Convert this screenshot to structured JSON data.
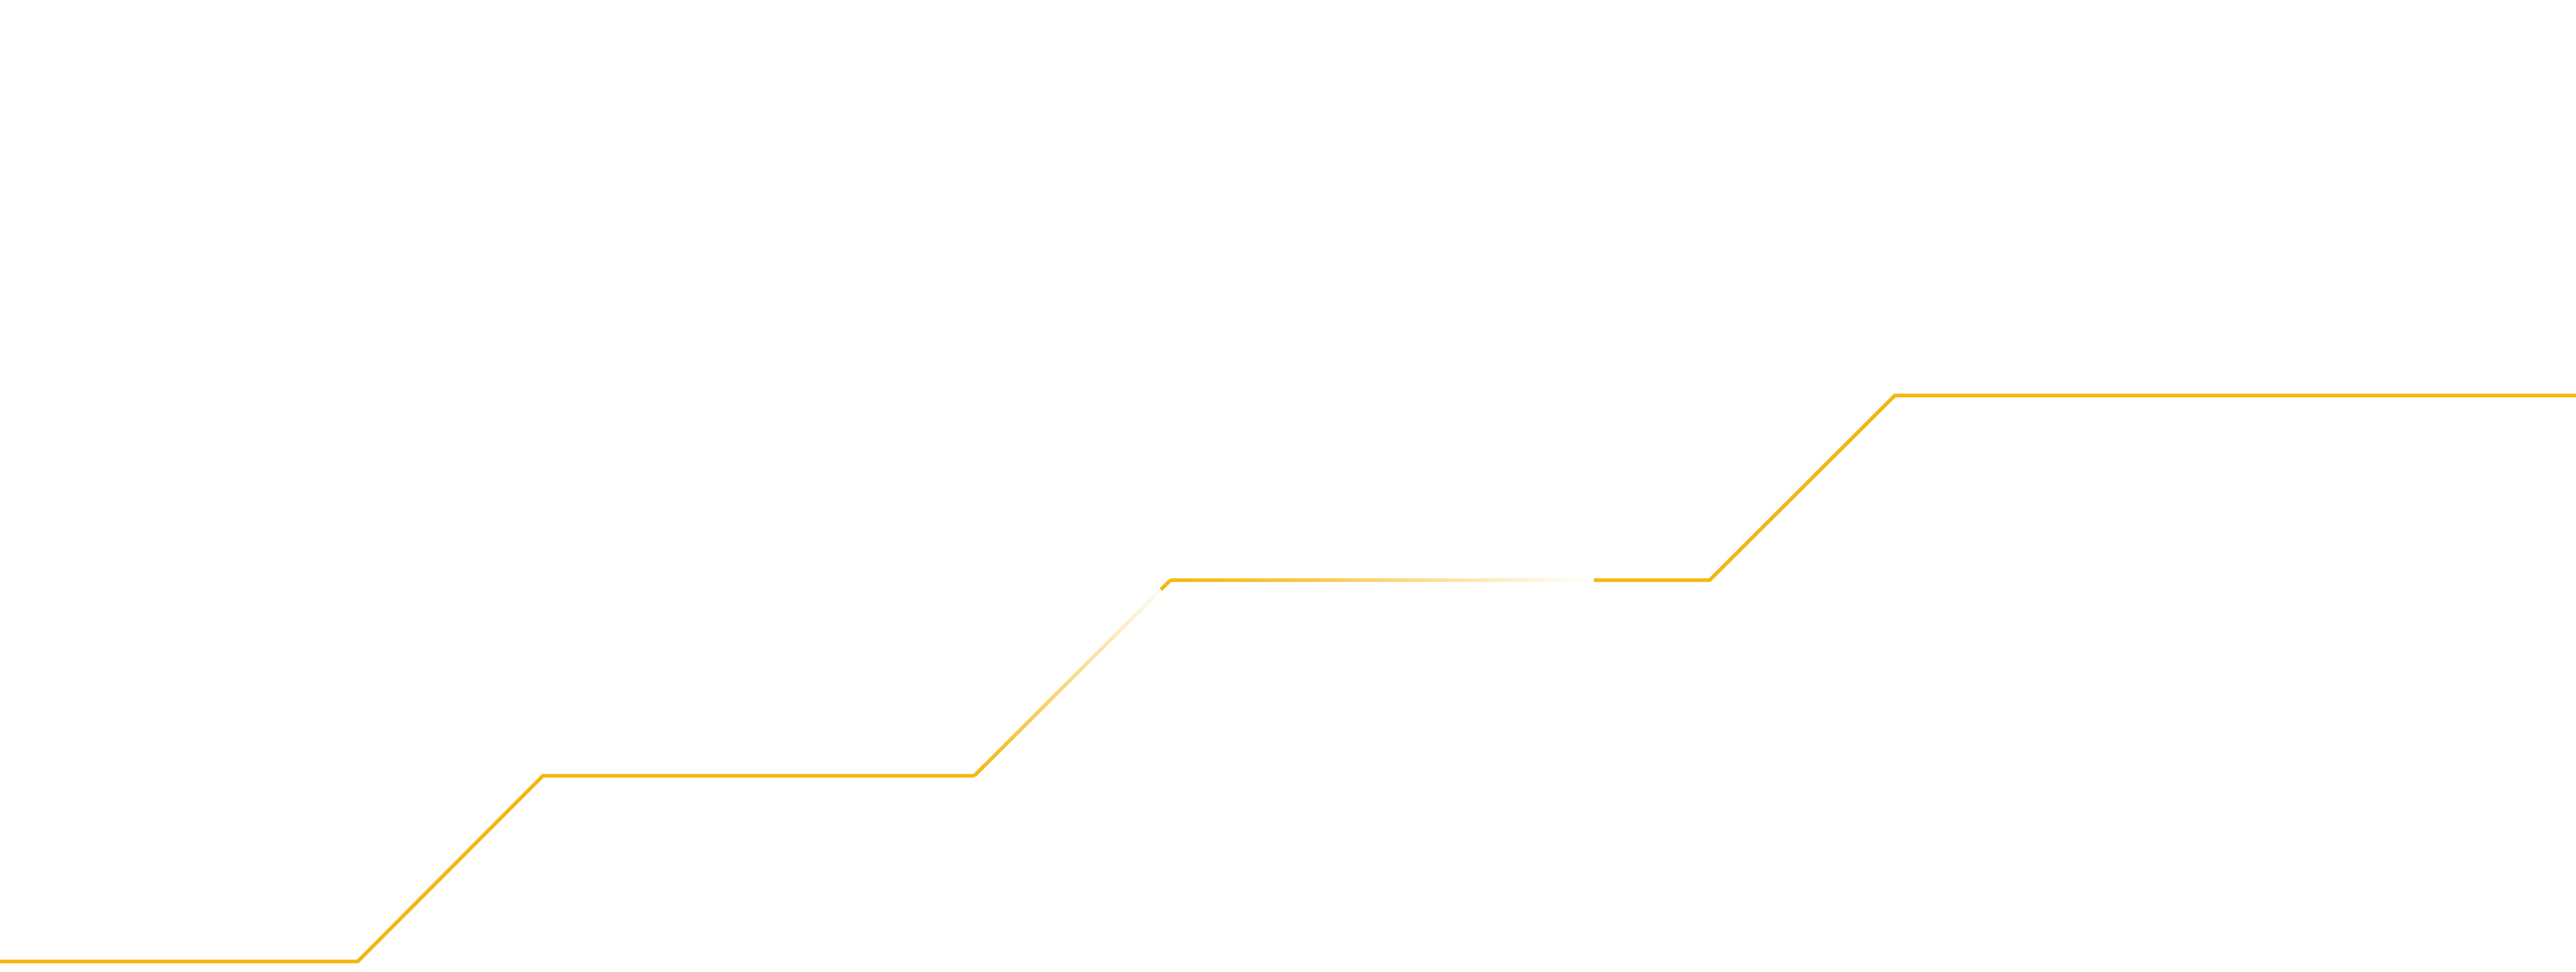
{
  "graphic": {
    "kind": "decorative-stepped-line",
    "line_color": "#F5B70F",
    "background_color": "#FFFFFF",
    "step_count": 4,
    "has_fading_highlight": true
  }
}
